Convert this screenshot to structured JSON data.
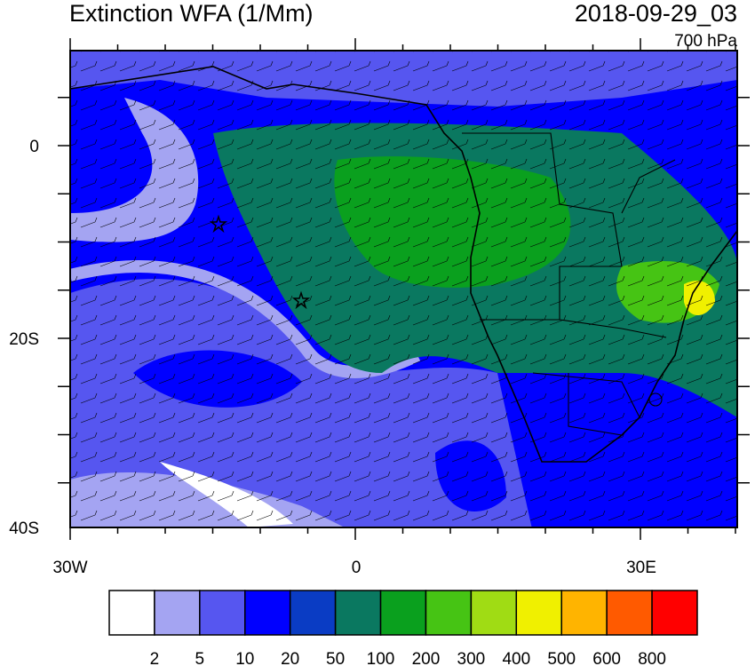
{
  "header": {
    "title": "Extinction WFA (1/Mm)",
    "valid_time": "2018-09-29_03",
    "level": "700 hPa"
  },
  "axes": {
    "lat_labels": [
      "0",
      "20S",
      "40S"
    ],
    "lon_labels": [
      "30W",
      "0",
      "30E"
    ]
  },
  "colorbar": {
    "colors": [
      "#ffffff",
      "#a4a4f2",
      "#5656f0",
      "#0000ff",
      "#0a3cc4",
      "#0a7860",
      "#0aa01e",
      "#46c414",
      "#a0dc14",
      "#f0f000",
      "#ffb400",
      "#ff5a00",
      "#ff0000"
    ],
    "labels": [
      2,
      5,
      10,
      20,
      50,
      100,
      200,
      300,
      400,
      500,
      600,
      800
    ]
  }
}
